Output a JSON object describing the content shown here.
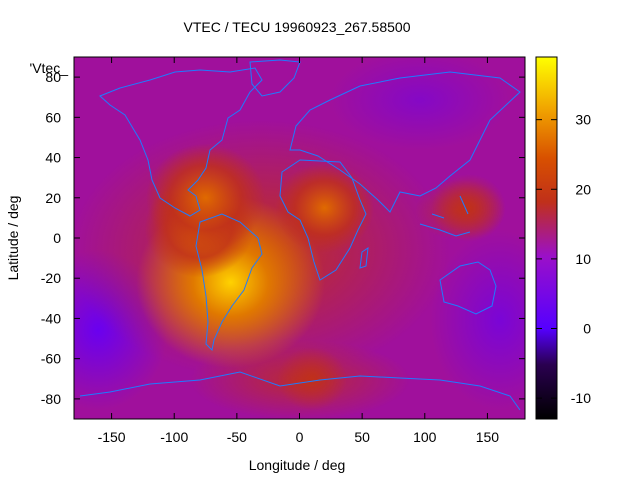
{
  "chart_data": {
    "type": "heatmap",
    "title": "VTEC / TECU 19960923_267.58500",
    "xlabel": "Longitude / deg",
    "ylabel": "Latitude / deg",
    "key_label": "'Vtec_",
    "xlim": [
      -180,
      180
    ],
    "ylim": [
      -90,
      90
    ],
    "x_ticks": [
      -150,
      -100,
      -50,
      0,
      50,
      100,
      150
    ],
    "y_ticks": [
      80,
      60,
      40,
      20,
      0,
      -20,
      -40,
      -60,
      -80
    ],
    "colorbar": {
      "range": [
        -13,
        39
      ],
      "ticks": [
        30,
        20,
        10,
        0,
        -10
      ],
      "palette": "black-blue-purple-red-orange-yellow"
    },
    "background_value": 8,
    "hotspots": [
      {
        "name": "south-america-peak",
        "lon": -55,
        "lat": -22,
        "value": 38
      },
      {
        "name": "atlantic-band",
        "lon": -80,
        "lat": 5,
        "value": 22
      },
      {
        "name": "caribbean",
        "lon": -75,
        "lat": 20,
        "value": 24
      },
      {
        "name": "africa",
        "lon": 20,
        "lat": 15,
        "value": 20
      },
      {
        "name": "equatorial-pacific",
        "lon": 135,
        "lat": 15,
        "value": 15
      },
      {
        "name": "southern-atlantic",
        "lon": 10,
        "lat": -70,
        "value": 14
      }
    ]
  }
}
